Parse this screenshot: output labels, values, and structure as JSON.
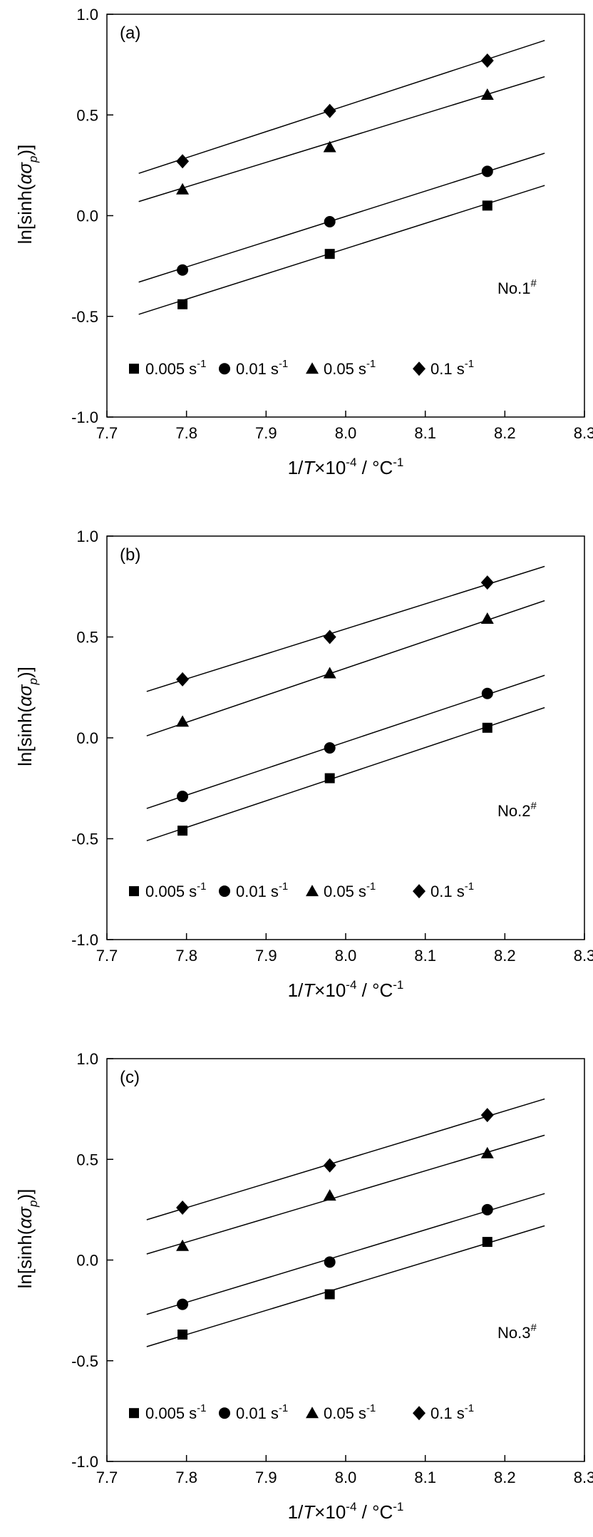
{
  "chart_data": [
    {
      "type": "scatter",
      "panel_label": "(a)",
      "sample_label": "No.1",
      "sample_label_sup": "#",
      "xlabel": {
        "pre": "1/",
        "italic": "T",
        "mid": "×10",
        "exp": "-4",
        "post": " / °C",
        "unit_exp": "-1"
      },
      "ylabel": {
        "pre": "ln[sinh(",
        "alpha": "α",
        "sigma": "σ",
        "sub": "p",
        "post": ")]"
      },
      "xlim": [
        7.7,
        8.3
      ],
      "ylim": [
        -1.0,
        1.0
      ],
      "xticks": [
        "7.7",
        "7.8",
        "7.9",
        "8.0",
        "8.1",
        "8.2",
        "8.3"
      ],
      "yticks": [
        "-1.0",
        "-0.5",
        "0.0",
        "0.5",
        "1.0"
      ],
      "grid": false,
      "legend_position": "bottom",
      "series": [
        {
          "name": "0.005 s",
          "unit_sup": "-1",
          "marker": "square",
          "x": [
            7.795,
            7.98,
            8.178
          ],
          "y": [
            -0.44,
            -0.19,
            0.05
          ],
          "fit": [
            [
              7.74,
              -0.49
            ],
            [
              8.25,
              0.15
            ]
          ]
        },
        {
          "name": "0.01 s",
          "unit_sup": "-1",
          "marker": "circle",
          "x": [
            7.795,
            7.98,
            8.178
          ],
          "y": [
            -0.27,
            -0.03,
            0.22
          ],
          "fit": [
            [
              7.74,
              -0.33
            ],
            [
              8.25,
              0.31
            ]
          ]
        },
        {
          "name": "0.05 s",
          "unit_sup": "-1",
          "marker": "triangle",
          "x": [
            7.795,
            7.98,
            8.178
          ],
          "y": [
            0.13,
            0.34,
            0.6
          ],
          "fit": [
            [
              7.74,
              0.07
            ],
            [
              8.25,
              0.69
            ]
          ]
        },
        {
          "name": "0.1 s",
          "unit_sup": "-1",
          "marker": "diamond",
          "x": [
            7.795,
            7.98,
            8.178
          ],
          "y": [
            0.27,
            0.52,
            0.77
          ],
          "fit": [
            [
              7.74,
              0.21
            ],
            [
              8.25,
              0.87
            ]
          ]
        }
      ]
    },
    {
      "type": "scatter",
      "panel_label": "(b)",
      "sample_label": "No.2",
      "sample_label_sup": "#",
      "xlabel": {
        "pre": "1/",
        "italic": "T",
        "mid": "×10",
        "exp": "-4",
        "post": " / °C",
        "unit_exp": "-1"
      },
      "ylabel": {
        "pre": "ln[sinh(",
        "alpha": "α",
        "sigma": "σ",
        "sub": "p",
        "post": ")]"
      },
      "xlim": [
        7.7,
        8.3
      ],
      "ylim": [
        -1.0,
        1.0
      ],
      "xticks": [
        "7.7",
        "7.8",
        "7.9",
        "8.0",
        "8.1",
        "8.2",
        "8.3"
      ],
      "yticks": [
        "-1.0",
        "-0.5",
        "0.0",
        "0.5",
        "1.0"
      ],
      "grid": false,
      "legend_position": "bottom",
      "series": [
        {
          "name": "0.005 s",
          "unit_sup": "-1",
          "marker": "square",
          "x": [
            7.795,
            7.98,
            8.178
          ],
          "y": [
            -0.46,
            -0.2,
            0.05
          ],
          "fit": [
            [
              7.75,
              -0.51
            ],
            [
              8.25,
              0.15
            ]
          ]
        },
        {
          "name": "0.01 s",
          "unit_sup": "-1",
          "marker": "circle",
          "x": [
            7.795,
            7.98,
            8.178
          ],
          "y": [
            -0.29,
            -0.05,
            0.22
          ],
          "fit": [
            [
              7.75,
              -0.35
            ],
            [
              8.25,
              0.31
            ]
          ]
        },
        {
          "name": "0.05 s",
          "unit_sup": "-1",
          "marker": "triangle",
          "x": [
            7.795,
            7.98,
            8.178
          ],
          "y": [
            0.08,
            0.32,
            0.59
          ],
          "fit": [
            [
              7.75,
              0.01
            ],
            [
              8.25,
              0.68
            ]
          ]
        },
        {
          "name": "0.1 s",
          "unit_sup": "-1",
          "marker": "diamond",
          "x": [
            7.795,
            7.98,
            8.178
          ],
          "y": [
            0.29,
            0.5,
            0.77
          ],
          "fit": [
            [
              7.75,
              0.23
            ],
            [
              8.25,
              0.85
            ]
          ]
        }
      ]
    },
    {
      "type": "scatter",
      "panel_label": "(c)",
      "sample_label": "No.3",
      "sample_label_sup": "#",
      "xlabel": {
        "pre": "1/",
        "italic": "T",
        "mid": "×10",
        "exp": "-4",
        "post": " / °C",
        "unit_exp": "-1"
      },
      "ylabel": {
        "pre": "ln[sinh(",
        "alpha": "α",
        "sigma": "σ",
        "sub": "p",
        "post": ")]"
      },
      "xlim": [
        7.7,
        8.3
      ],
      "ylim": [
        -1.0,
        1.0
      ],
      "xticks": [
        "7.7",
        "7.8",
        "7.9",
        "8.0",
        "8.1",
        "8.2",
        "8.3"
      ],
      "yticks": [
        "-1.0",
        "-0.5",
        "0.0",
        "0.5",
        "1.0"
      ],
      "grid": false,
      "legend_position": "bottom",
      "series": [
        {
          "name": "0.005 s",
          "unit_sup": "-1",
          "marker": "square",
          "x": [
            7.795,
            7.98,
            8.178
          ],
          "y": [
            -0.37,
            -0.17,
            0.09
          ],
          "fit": [
            [
              7.75,
              -0.43
            ],
            [
              8.25,
              0.17
            ]
          ]
        },
        {
          "name": "0.01 s",
          "unit_sup": "-1",
          "marker": "circle",
          "x": [
            7.795,
            7.98,
            8.178
          ],
          "y": [
            -0.22,
            -0.01,
            0.25
          ],
          "fit": [
            [
              7.75,
              -0.27
            ],
            [
              8.25,
              0.33
            ]
          ]
        },
        {
          "name": "0.05 s",
          "unit_sup": "-1",
          "marker": "triangle",
          "x": [
            7.795,
            7.98,
            8.178
          ],
          "y": [
            0.07,
            0.32,
            0.53
          ],
          "fit": [
            [
              7.75,
              0.03
            ],
            [
              8.25,
              0.62
            ]
          ]
        },
        {
          "name": "0.1 s",
          "unit_sup": "-1",
          "marker": "diamond",
          "x": [
            7.795,
            7.98,
            8.178
          ],
          "y": [
            0.26,
            0.47,
            0.72
          ],
          "fit": [
            [
              7.75,
              0.2
            ],
            [
              8.25,
              0.8
            ]
          ]
        }
      ]
    }
  ]
}
